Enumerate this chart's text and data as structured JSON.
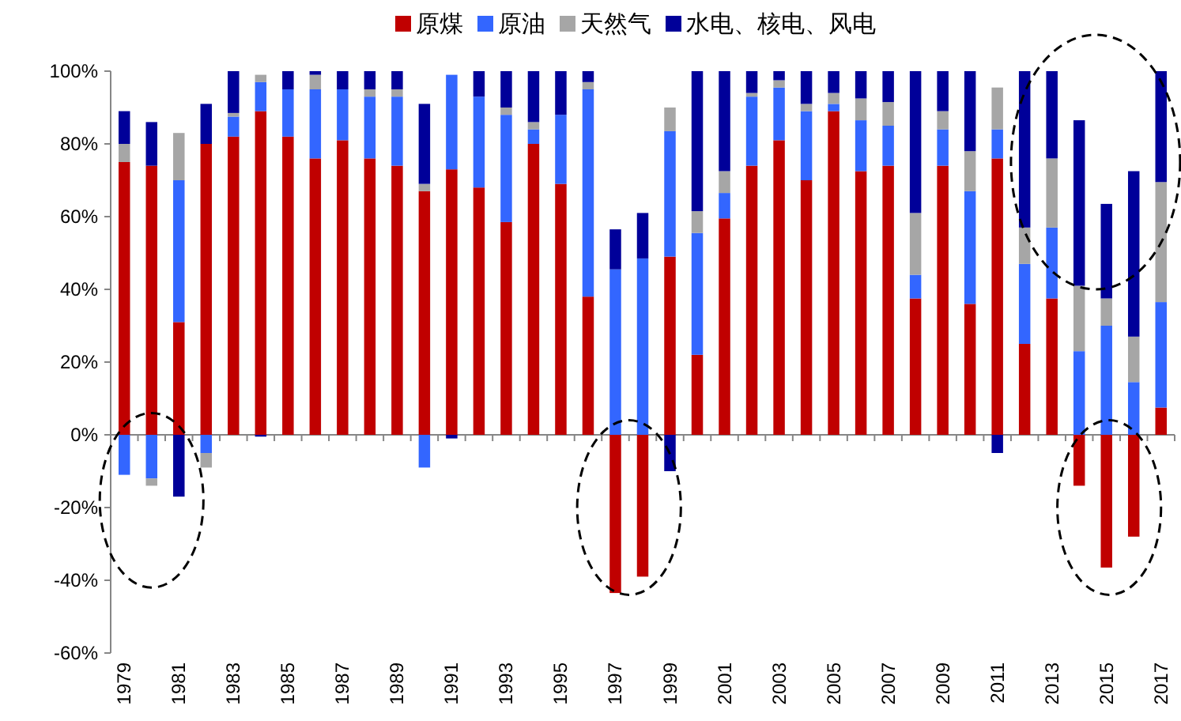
{
  "chart_data": {
    "type": "bar",
    "stacked": true,
    "legend": "top",
    "categories": [
      "1979",
      null,
      "1981",
      null,
      "1983",
      null,
      "1985",
      null,
      "1987",
      null,
      "1989",
      null,
      "1991",
      null,
      "1993",
      null,
      "1995",
      null,
      "1997",
      null,
      "1999",
      null,
      "2001",
      null,
      "2003",
      null,
      "2005",
      null,
      "2007",
      null,
      "2009",
      null,
      "2011",
      null,
      "2013",
      null,
      "2015",
      null,
      "2017"
    ],
    "ylim": [
      -60,
      100
    ],
    "yticks": [
      {
        "value": -60,
        "label": "-60%"
      },
      {
        "value": -40,
        "label": "-40%"
      },
      {
        "value": -20,
        "label": "-20%"
      },
      {
        "value": 0,
        "label": "0%"
      },
      {
        "value": 20,
        "label": "20%"
      },
      {
        "value": 40,
        "label": "40%"
      },
      {
        "value": 60,
        "label": "60%"
      },
      {
        "value": 80,
        "label": "80%"
      },
      {
        "value": 100,
        "label": "100%"
      }
    ],
    "series": [
      {
        "name": "原煤",
        "color": "#c00000",
        "values": [
          75,
          74,
          31,
          80,
          82,
          89,
          82,
          76,
          81,
          76,
          74,
          67,
          73,
          68,
          58.5,
          80,
          69,
          38,
          -43.5,
          -39,
          49,
          22,
          59.5,
          74,
          81,
          70,
          89,
          72.5,
          74,
          37.5,
          74,
          36,
          76,
          25,
          37.5,
          -14,
          -36.5,
          -28,
          7.5
        ]
      },
      {
        "name": "原油",
        "color": "#3366ff",
        "values": [
          -11,
          -12,
          39,
          -5,
          5.5,
          8,
          13,
          19,
          14,
          17,
          19,
          -9,
          26,
          25,
          29.5,
          4,
          19,
          57,
          45.5,
          48.5,
          34.5,
          33.5,
          7,
          19,
          14.5,
          19,
          2,
          14,
          11,
          6.5,
          10,
          31,
          8,
          22,
          19.5,
          23,
          30,
          14.5,
          29
        ]
      },
      {
        "name": "天然气",
        "color": "#a6a6a6",
        "values": [
          5,
          -2,
          13,
          -4,
          1,
          2,
          0,
          4,
          0,
          2,
          2,
          2,
          0,
          0,
          2,
          2,
          0,
          2,
          0,
          0,
          6.5,
          6,
          6,
          1,
          2,
          2,
          3,
          6,
          6.5,
          17,
          5,
          11,
          11.5,
          10,
          19,
          18,
          7.5,
          12.5,
          33
        ]
      },
      {
        "name": "水电、核电、风电",
        "color": "#000099",
        "values": [
          9,
          12,
          -17,
          11,
          11.5,
          -0.5,
          5,
          1,
          5,
          5,
          5,
          22,
          -1,
          7,
          10,
          14,
          12,
          3,
          11,
          12.5,
          -10,
          38.5,
          27.5,
          6,
          2.5,
          9,
          6,
          7.5,
          8.5,
          39,
          11,
          22,
          -5,
          43,
          24,
          45.5,
          26,
          45.5,
          30.5
        ]
      }
    ]
  }
}
